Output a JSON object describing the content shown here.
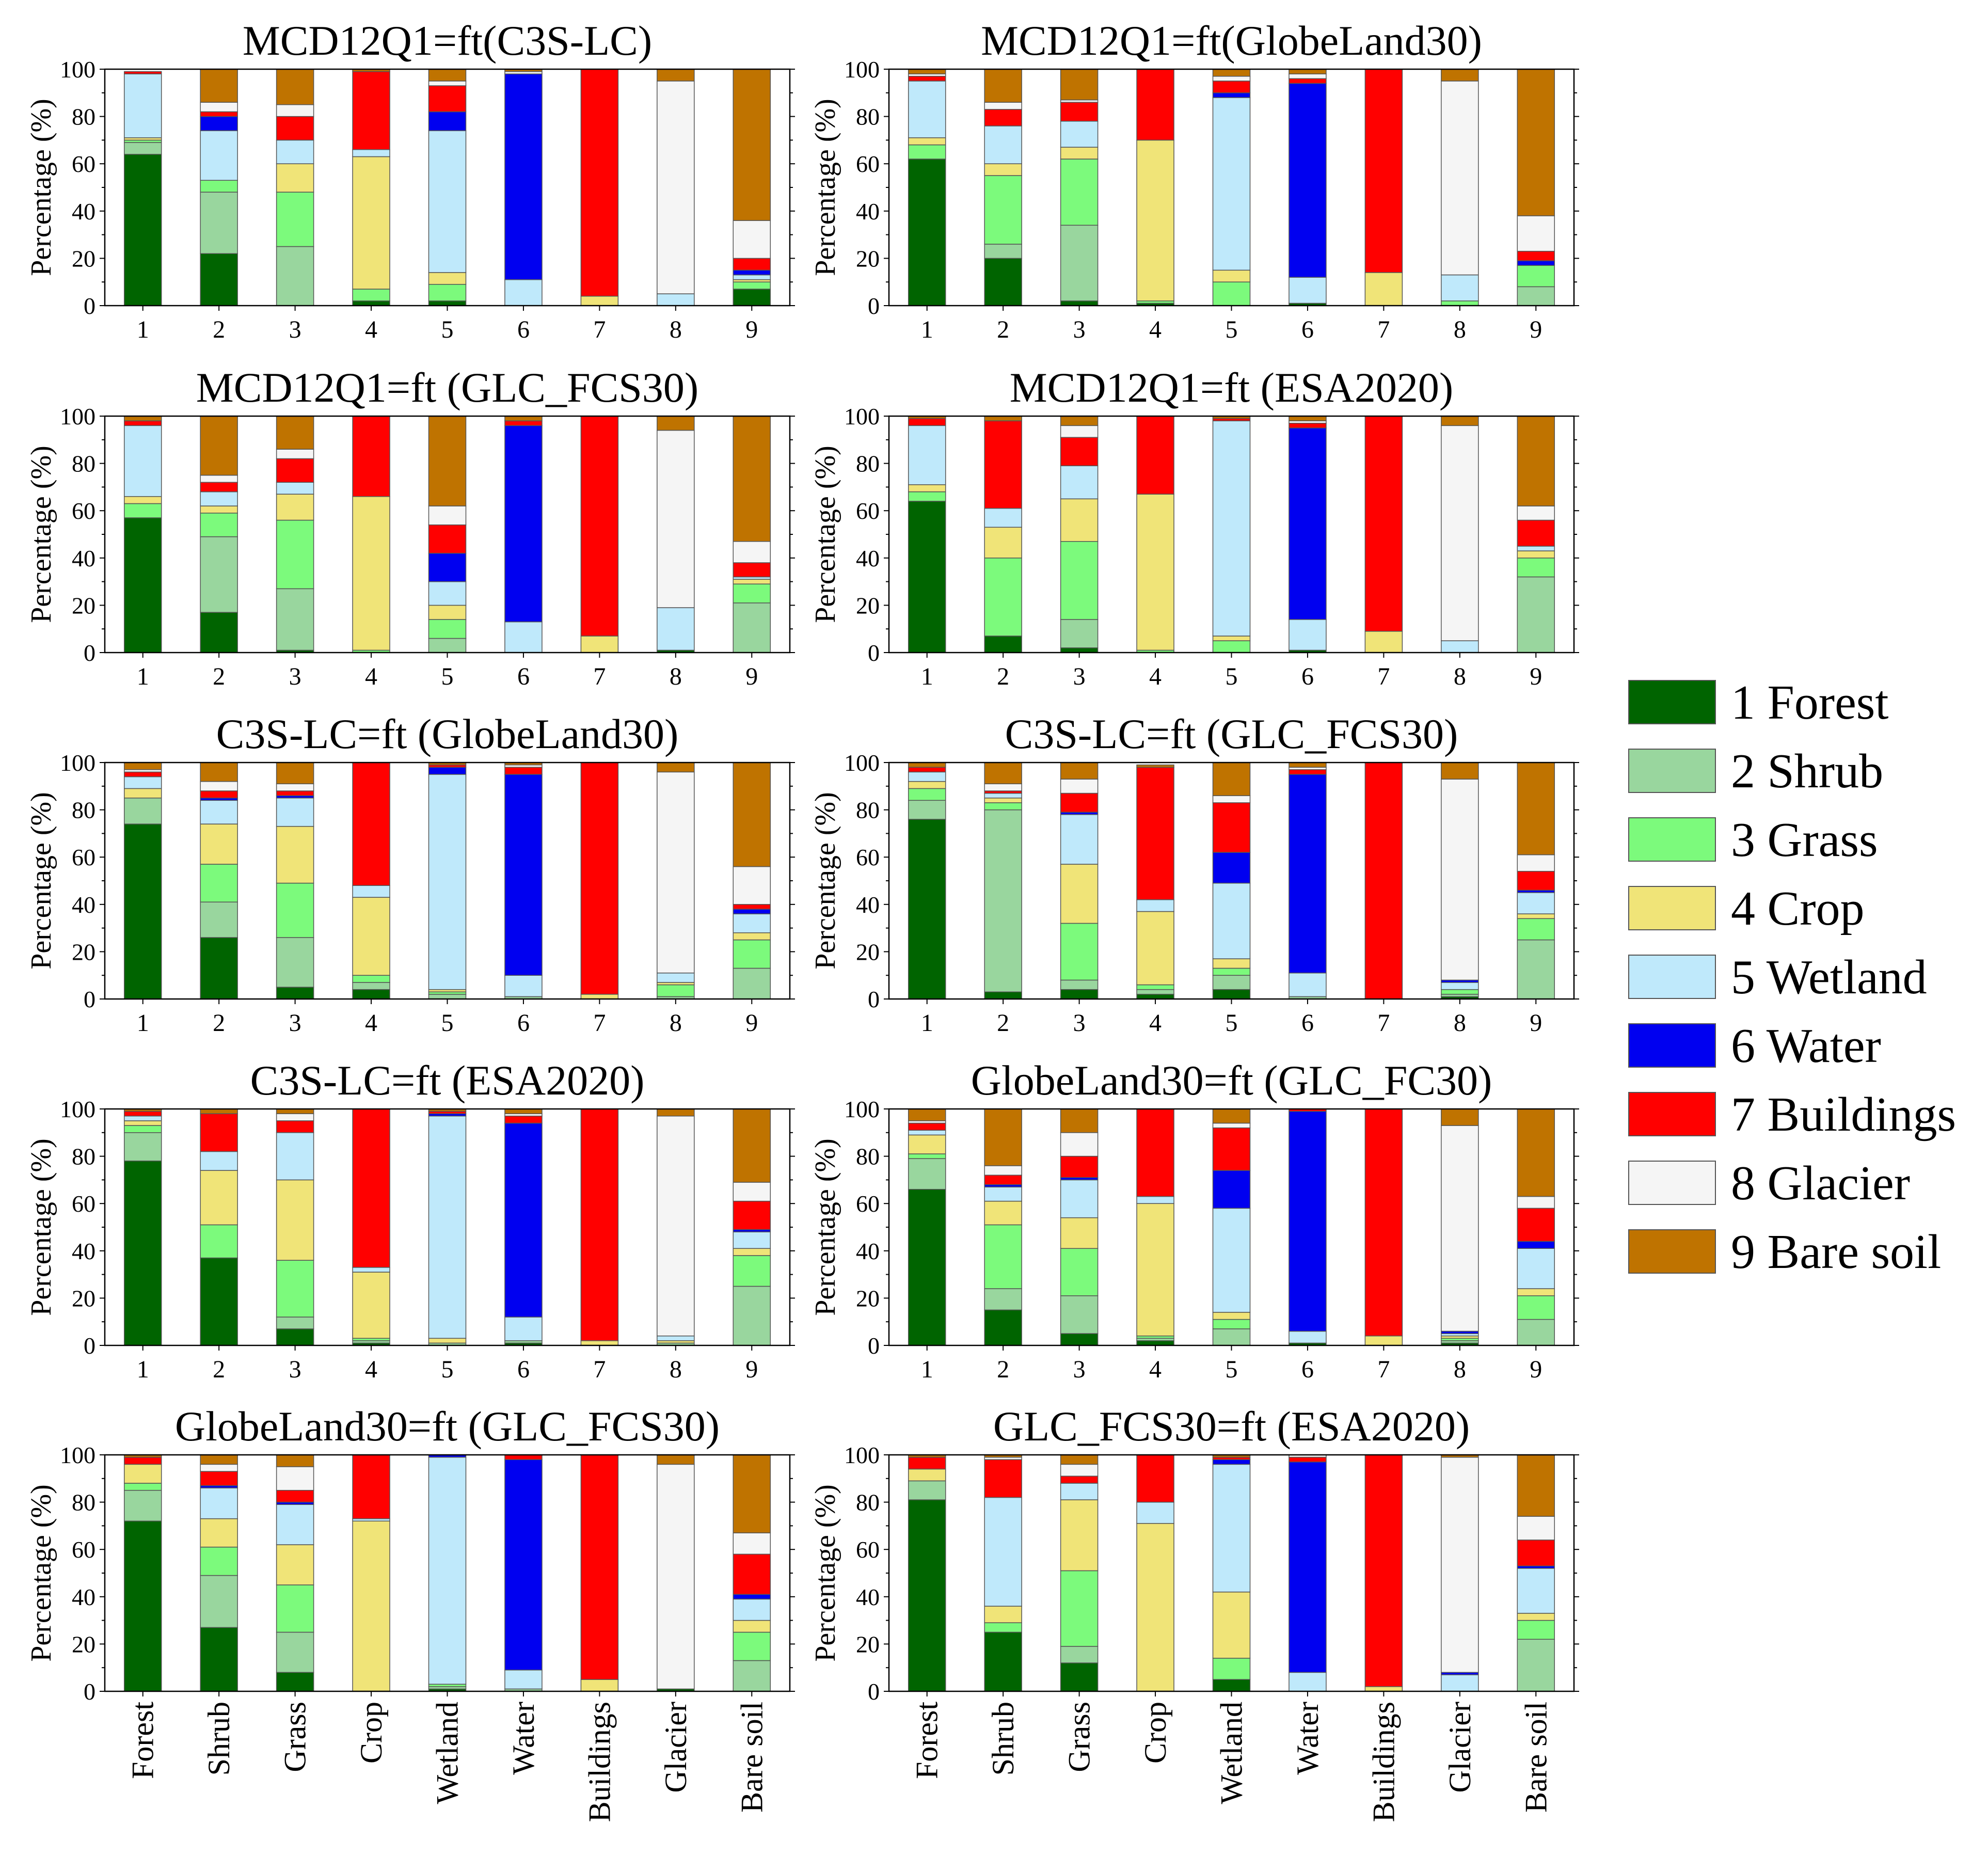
{
  "figure": {
    "ylabel": "Percentage (%)",
    "yticks": [
      "0",
      "20",
      "40",
      "60",
      "80",
      "100"
    ],
    "category_numbers": [
      "1",
      "2",
      "3",
      "4",
      "5",
      "6",
      "7",
      "8",
      "9"
    ],
    "category_names": [
      "Forest",
      "Shrub",
      "Grass",
      "Crop",
      "Wetland",
      "Water",
      "Buildings",
      "Glacier",
      "Bare soil"
    ]
  },
  "legend": {
    "items": [
      {
        "label": "1 Forest",
        "color": "#006400"
      },
      {
        "label": "2 Shrub",
        "color": "#99D69E"
      },
      {
        "label": "3 Grass",
        "color": "#7CFA7C"
      },
      {
        "label": "4 Crop",
        "color": "#F0E478"
      },
      {
        "label": "5 Wetland",
        "color": "#BFE9FB"
      },
      {
        "label": "6 Water",
        "color": "#0000F0"
      },
      {
        "label": "7 Buildings",
        "color": "#FF0000"
      },
      {
        "label": "8 Glacier",
        "color": "#F5F5F5"
      },
      {
        "label": "9 Bare soil",
        "color": "#BF7300"
      }
    ]
  },
  "chart_data": [
    {
      "type": "bar",
      "stacked": true,
      "title": "MCD12Q1=ft(C3S-LC)",
      "ylabel": "Percentage (%)",
      "ylim": [
        0,
        100
      ],
      "categories": [
        "1",
        "2",
        "3",
        "4",
        "5",
        "6",
        "7",
        "8",
        "9"
      ],
      "stacks": [
        [
          64,
          5,
          1,
          1,
          27,
          0,
          1,
          0,
          0
        ],
        [
          22,
          26,
          5,
          0,
          21,
          6,
          2,
          4,
          14
        ],
        [
          0,
          25,
          23,
          12,
          10,
          0,
          10,
          5,
          15
        ],
        [
          2,
          0,
          5,
          56,
          3,
          0,
          33,
          0,
          1
        ],
        [
          2,
          0,
          7,
          5,
          60,
          8,
          11,
          2,
          5
        ],
        [
          0,
          0,
          0,
          0,
          11,
          87,
          0,
          1,
          1
        ],
        [
          0,
          0,
          0,
          4,
          0,
          0,
          96,
          0,
          0
        ],
        [
          0,
          0,
          0,
          0,
          5,
          0,
          0,
          90,
          5
        ],
        [
          7,
          0,
          3,
          1,
          2,
          2,
          5,
          16,
          64
        ]
      ]
    },
    {
      "type": "bar",
      "stacked": true,
      "title": "MCD12Q1=ft(GlobeLand30)",
      "ylabel": "Percentage (%)",
      "ylim": [
        0,
        100
      ],
      "categories": [
        "1",
        "2",
        "3",
        "4",
        "5",
        "6",
        "7",
        "8",
        "9"
      ],
      "stacks": [
        [
          62,
          0,
          6,
          3,
          24,
          0,
          2,
          1,
          2
        ],
        [
          20,
          6,
          29,
          5,
          16,
          0,
          7,
          3,
          14
        ],
        [
          2,
          32,
          28,
          5,
          11,
          0,
          8,
          1,
          13
        ],
        [
          1,
          0,
          1,
          68,
          0,
          0,
          30,
          0,
          0
        ],
        [
          0,
          0,
          10,
          5,
          73,
          2,
          5,
          2,
          3
        ],
        [
          1,
          0,
          0,
          0,
          11,
          82,
          2,
          2,
          2
        ],
        [
          0,
          0,
          0,
          14,
          0,
          0,
          86,
          0,
          0
        ],
        [
          0,
          0,
          2,
          0,
          11,
          0,
          0,
          82,
          5
        ],
        [
          0,
          8,
          9,
          0,
          0,
          2,
          4,
          15,
          62
        ]
      ]
    },
    {
      "type": "bar",
      "stacked": true,
      "title": "MCD12Q1=ft (GLC_FCS30)",
      "ylabel": "Percentage (%)",
      "ylim": [
        0,
        100
      ],
      "categories": [
        "1",
        "2",
        "3",
        "4",
        "5",
        "6",
        "7",
        "8",
        "9"
      ],
      "stacks": [
        [
          57,
          0,
          6,
          3,
          30,
          0,
          2,
          0,
          2
        ],
        [
          17,
          32,
          10,
          3,
          6,
          0,
          4,
          3,
          25
        ],
        [
          1,
          26,
          29,
          11,
          5,
          0,
          10,
          4,
          14
        ],
        [
          0,
          0,
          1,
          65,
          0,
          0,
          34,
          0,
          0
        ],
        [
          0,
          6,
          8,
          6,
          10,
          12,
          12,
          8,
          38
        ],
        [
          0,
          0,
          0,
          0,
          13,
          83,
          2,
          0,
          2
        ],
        [
          0,
          0,
          0,
          7,
          0,
          0,
          93,
          0,
          0
        ],
        [
          1,
          0,
          0,
          0,
          18,
          0,
          0,
          75,
          6
        ],
        [
          0,
          21,
          8,
          2,
          1,
          0,
          6,
          9,
          53
        ]
      ]
    },
    {
      "type": "bar",
      "stacked": true,
      "title": "MCD12Q1=ft (ESA2020)",
      "ylabel": "Percentage (%)",
      "ylim": [
        0,
        100
      ],
      "categories": [
        "1",
        "2",
        "3",
        "4",
        "5",
        "6",
        "7",
        "8",
        "9"
      ],
      "stacks": [
        [
          64,
          0,
          4,
          3,
          25,
          0,
          3,
          0,
          1
        ],
        [
          7,
          0,
          33,
          13,
          8,
          0,
          37,
          0,
          2
        ],
        [
          2,
          12,
          33,
          18,
          14,
          0,
          12,
          5,
          4
        ],
        [
          0,
          0,
          1,
          66,
          0,
          0,
          33,
          0,
          0
        ],
        [
          0,
          0,
          5,
          2,
          91,
          0,
          1,
          0,
          1
        ],
        [
          1,
          0,
          0,
          0,
          13,
          81,
          2,
          1,
          2
        ],
        [
          0,
          0,
          0,
          9,
          0,
          0,
          91,
          0,
          0
        ],
        [
          0,
          0,
          0,
          0,
          5,
          0,
          0,
          91,
          4
        ],
        [
          0,
          32,
          8,
          3,
          2,
          0,
          11,
          6,
          38
        ]
      ]
    },
    {
      "type": "bar",
      "stacked": true,
      "title": "C3S-LC=ft (GlobeLand30)",
      "ylabel": "Percentage (%)",
      "ylim": [
        0,
        100
      ],
      "categories": [
        "1",
        "2",
        "3",
        "4",
        "5",
        "6",
        "7",
        "8",
        "9"
      ],
      "stacks": [
        [
          74,
          11,
          0,
          4,
          5,
          0,
          2,
          1,
          3
        ],
        [
          26,
          15,
          16,
          17,
          10,
          1,
          3,
          4,
          8
        ],
        [
          5,
          21,
          23,
          24,
          12,
          1,
          2,
          3,
          9
        ],
        [
          4,
          3,
          3,
          33,
          5,
          0,
          52,
          0,
          0
        ],
        [
          0,
          2,
          1,
          1,
          91,
          3,
          1,
          0,
          1
        ],
        [
          0,
          1,
          0,
          0,
          9,
          85,
          3,
          1,
          1
        ],
        [
          0,
          0,
          0,
          2,
          0,
          0,
          98,
          0,
          0
        ],
        [
          0,
          1,
          5,
          1,
          4,
          0,
          0,
          85,
          4
        ],
        [
          0,
          13,
          12,
          3,
          8,
          2,
          2,
          16,
          44
        ]
      ]
    },
    {
      "type": "bar",
      "stacked": true,
      "title": "C3S-LC=ft (GLC_FCS30)",
      "ylabel": "Percentage (%)",
      "ylim": [
        0,
        100
      ],
      "categories": [
        "1",
        "2",
        "3",
        "4",
        "5",
        "6",
        "7",
        "8",
        "9"
      ],
      "stacks": [
        [
          76,
          8,
          5,
          3,
          4,
          0,
          2,
          0,
          2
        ],
        [
          3,
          77,
          3,
          2,
          2,
          0,
          1,
          3,
          9
        ],
        [
          4,
          4,
          24,
          25,
          21,
          1,
          8,
          6,
          7
        ],
        [
          2,
          2,
          2,
          31,
          5,
          0,
          56,
          0,
          1
        ],
        [
          4,
          6,
          3,
          4,
          32,
          13,
          21,
          3,
          14
        ],
        [
          0,
          1,
          0,
          0,
          10,
          84,
          2,
          1,
          2
        ],
        [
          0,
          0,
          0,
          0,
          0,
          0,
          100,
          0,
          0
        ],
        [
          1,
          1,
          2,
          0,
          3,
          1,
          0,
          85,
          7
        ],
        [
          0,
          25,
          9,
          2,
          9,
          1,
          8,
          7,
          39
        ]
      ]
    },
    {
      "type": "bar",
      "stacked": true,
      "title": "C3S-LC=ft (ESA2020)",
      "ylabel": "Percentage (%)",
      "ylim": [
        0,
        100
      ],
      "categories": [
        "1",
        "2",
        "3",
        "4",
        "5",
        "6",
        "7",
        "8",
        "9"
      ],
      "stacks": [
        [
          78,
          12,
          3,
          2,
          2,
          0,
          2,
          0,
          1
        ],
        [
          37,
          0,
          14,
          23,
          8,
          0,
          16,
          0,
          2
        ],
        [
          7,
          5,
          24,
          34,
          20,
          0,
          5,
          3,
          2
        ],
        [
          1,
          1,
          1,
          28,
          2,
          0,
          67,
          0,
          0
        ],
        [
          0,
          1,
          0,
          2,
          94,
          1,
          1,
          0,
          1
        ],
        [
          1,
          1,
          0,
          0,
          10,
          82,
          3,
          1,
          2
        ],
        [
          0,
          0,
          0,
          2,
          0,
          0,
          98,
          0,
          0
        ],
        [
          0,
          1,
          0,
          1,
          2,
          0,
          0,
          93,
          3
        ],
        [
          0,
          25,
          13,
          3,
          7,
          1,
          12,
          8,
          31
        ]
      ]
    },
    {
      "type": "bar",
      "stacked": true,
      "title": "GlobeLand30=ft (GLC_FC30)",
      "ylabel": "Percentage (%)",
      "ylim": [
        0,
        100
      ],
      "categories": [
        "1",
        "2",
        "3",
        "4",
        "5",
        "6",
        "7",
        "8",
        "9"
      ],
      "stacks": [
        [
          66,
          13,
          2,
          8,
          2,
          0,
          3,
          1,
          5
        ],
        [
          15,
          9,
          27,
          10,
          6,
          1,
          4,
          4,
          24
        ],
        [
          5,
          16,
          20,
          13,
          16,
          1,
          9,
          10,
          10
        ],
        [
          2,
          1,
          1,
          56,
          3,
          0,
          37,
          0,
          0
        ],
        [
          0,
          7,
          4,
          3,
          44,
          16,
          18,
          2,
          6
        ],
        [
          1,
          0,
          0,
          0,
          5,
          93,
          1,
          0,
          0
        ],
        [
          0,
          0,
          0,
          4,
          0,
          0,
          96,
          0,
          0
        ],
        [
          1,
          1,
          1,
          1,
          1,
          1,
          0,
          87,
          7
        ],
        [
          0,
          11,
          10,
          3,
          17,
          3,
          14,
          5,
          37
        ]
      ]
    },
    {
      "type": "bar",
      "stacked": true,
      "title": "GlobeLand30=ft (GLC_FCS30)",
      "ylabel": "Percentage (%)",
      "ylim": [
        0,
        100
      ],
      "categories": [
        "Forest",
        "Shrub",
        "Grass",
        "Crop",
        "Wetland",
        "Water",
        "Buildings",
        "Glacier",
        "Bare soil"
      ],
      "stacks": [
        [
          72,
          13,
          3,
          8,
          0,
          0,
          3,
          0,
          1
        ],
        [
          27,
          22,
          12,
          12,
          13,
          1,
          6,
          3,
          4
        ],
        [
          8,
          17,
          20,
          17,
          17,
          1,
          5,
          10,
          5
        ],
        [
          0,
          0,
          0,
          72,
          1,
          0,
          27,
          0,
          0
        ],
        [
          1,
          1,
          1,
          0,
          96,
          1,
          0,
          0,
          0
        ],
        [
          0,
          1,
          0,
          0,
          8,
          89,
          2,
          0,
          0
        ],
        [
          0,
          0,
          0,
          5,
          0,
          0,
          95,
          0,
          0
        ],
        [
          1,
          0,
          0,
          0,
          0,
          0,
          0,
          95,
          4
        ],
        [
          0,
          13,
          12,
          5,
          9,
          2,
          17,
          9,
          33
        ]
      ]
    },
    {
      "type": "bar",
      "stacked": true,
      "title": "GLC_FCS30=ft (ESA2020)",
      "ylabel": "Percentage (%)",
      "ylim": [
        0,
        100
      ],
      "categories": [
        "Forest",
        "Shrub",
        "Grass",
        "Crop",
        "Wetland",
        "Water",
        "Buildings",
        "Glacier",
        "Bare soil"
      ],
      "stacks": [
        [
          81,
          8,
          0,
          5,
          0,
          0,
          5,
          0,
          1
        ],
        [
          25,
          0,
          4,
          7,
          46,
          0,
          16,
          1,
          1
        ],
        [
          12,
          7,
          32,
          30,
          7,
          0,
          3,
          5,
          4
        ],
        [
          0,
          0,
          0,
          71,
          9,
          0,
          20,
          0,
          0
        ],
        [
          5,
          0,
          9,
          28,
          54,
          2,
          1,
          0,
          1
        ],
        [
          0,
          0,
          0,
          0,
          8,
          89,
          2,
          1,
          0
        ],
        [
          0,
          0,
          0,
          2,
          0,
          0,
          98,
          0,
          0
        ],
        [
          0,
          0,
          0,
          0,
          7,
          1,
          0,
          91,
          1
        ],
        [
          0,
          22,
          8,
          3,
          19,
          1,
          11,
          10,
          26
        ]
      ]
    }
  ]
}
